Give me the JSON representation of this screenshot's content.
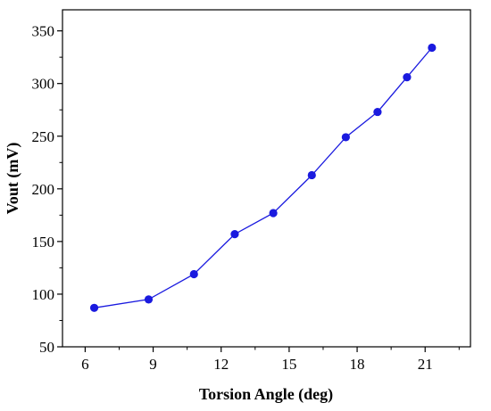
{
  "chart_data": {
    "type": "line",
    "title": "",
    "xlabel": "Torsion Angle (deg)",
    "ylabel": "Vout (mV)",
    "xlim": [
      5,
      23
    ],
    "ylim": [
      50,
      370
    ],
    "xticks": [
      6,
      9,
      12,
      15,
      18,
      21
    ],
    "yticks": [
      50,
      100,
      150,
      200,
      250,
      300,
      350
    ],
    "grid": false,
    "legend": "none",
    "series": [
      {
        "color": "#1a1adf",
        "marker": "circle",
        "x": [
          6.4,
          8.8,
          10.8,
          12.6,
          14.3,
          16.0,
          17.5,
          18.9,
          20.2,
          21.3
        ],
        "y": [
          87,
          95,
          119,
          157,
          177,
          213,
          249,
          273,
          306,
          334
        ]
      }
    ]
  }
}
